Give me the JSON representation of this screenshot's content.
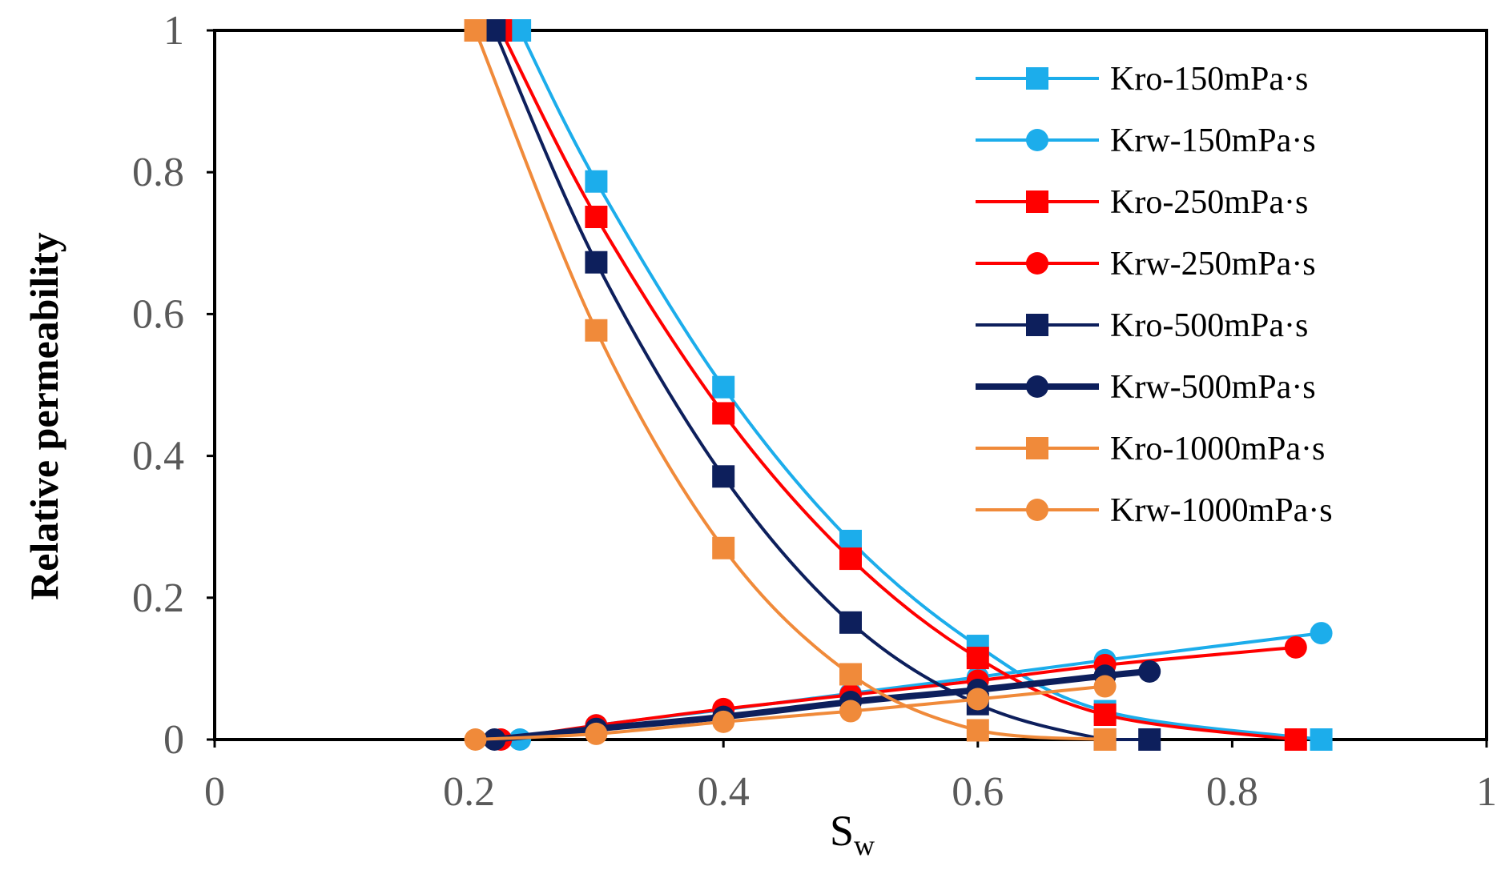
{
  "chart_data": {
    "type": "line",
    "title": "",
    "xlabel": "S",
    "xlabel_subscript": "w",
    "ylabel": "Relative permeability",
    "xlim": [
      0,
      1
    ],
    "ylim": [
      0,
      1
    ],
    "xticks": [
      0,
      0.2,
      0.4,
      0.6,
      0.8,
      1
    ],
    "xtick_labels": [
      "0",
      "0.2",
      "0.4",
      "0.6",
      "0.8",
      "1"
    ],
    "yticks": [
      0,
      0.2,
      0.4,
      0.6,
      0.8,
      1
    ],
    "ytick_labels": [
      "0",
      "0.2",
      "0.4",
      "0.6",
      "0.8",
      "1"
    ],
    "grid": false,
    "legend_position": "top-right",
    "series": [
      {
        "name": "Kro-150mPa·s",
        "color": "#1CADEB",
        "marker": "square",
        "x": [
          0.24,
          0.3,
          0.4,
          0.5,
          0.6,
          0.7,
          0.87
        ],
        "y": [
          1.0,
          0.787,
          0.497,
          0.28,
          0.132,
          0.04,
          0.0
        ]
      },
      {
        "name": "Krw-150mPa·s",
        "color": "#1CADEB",
        "marker": "circle",
        "x": [
          0.24,
          0.3,
          0.4,
          0.5,
          0.6,
          0.7,
          0.87
        ],
        "y": [
          0.0,
          0.02,
          0.042,
          0.065,
          0.088,
          0.112,
          0.15
        ]
      },
      {
        "name": "Kro-250mPa·s",
        "color": "#FF0000",
        "marker": "square",
        "x": [
          0.225,
          0.3,
          0.4,
          0.5,
          0.6,
          0.7,
          0.85
        ],
        "y": [
          1.0,
          0.737,
          0.46,
          0.255,
          0.115,
          0.035,
          0.0
        ]
      },
      {
        "name": "Krw-250mPa·s",
        "color": "#FF0000",
        "marker": "circle",
        "x": [
          0.225,
          0.3,
          0.4,
          0.5,
          0.6,
          0.7,
          0.85
        ],
        "y": [
          0.0,
          0.02,
          0.043,
          0.063,
          0.083,
          0.105,
          0.13
        ]
      },
      {
        "name": "Kro-500mPa·s",
        "color": "#0D1F5C",
        "marker": "square",
        "x": [
          0.22,
          0.3,
          0.4,
          0.5,
          0.6,
          0.7,
          0.735
        ],
        "y": [
          1.0,
          0.673,
          0.371,
          0.165,
          0.05,
          0.0,
          0.0
        ]
      },
      {
        "name": "Krw-500mPa·s",
        "color": "#0D1F5C",
        "marker": "circle",
        "x": [
          0.22,
          0.3,
          0.4,
          0.5,
          0.6,
          0.7,
          0.735
        ],
        "y": [
          0.0,
          0.015,
          0.032,
          0.053,
          0.07,
          0.09,
          0.096
        ]
      },
      {
        "name": "Kro-1000mPa·s",
        "color": "#F08A3A",
        "marker": "square",
        "x": [
          0.205,
          0.3,
          0.4,
          0.5,
          0.6,
          0.7
        ],
        "y": [
          1.0,
          0.577,
          0.27,
          0.092,
          0.013,
          0.0
        ]
      },
      {
        "name": "Krw-1000mPa·s",
        "color": "#F08A3A",
        "marker": "circle",
        "x": [
          0.205,
          0.3,
          0.4,
          0.5,
          0.6,
          0.7
        ],
        "y": [
          0.0,
          0.008,
          0.025,
          0.04,
          0.057,
          0.075
        ]
      }
    ]
  }
}
